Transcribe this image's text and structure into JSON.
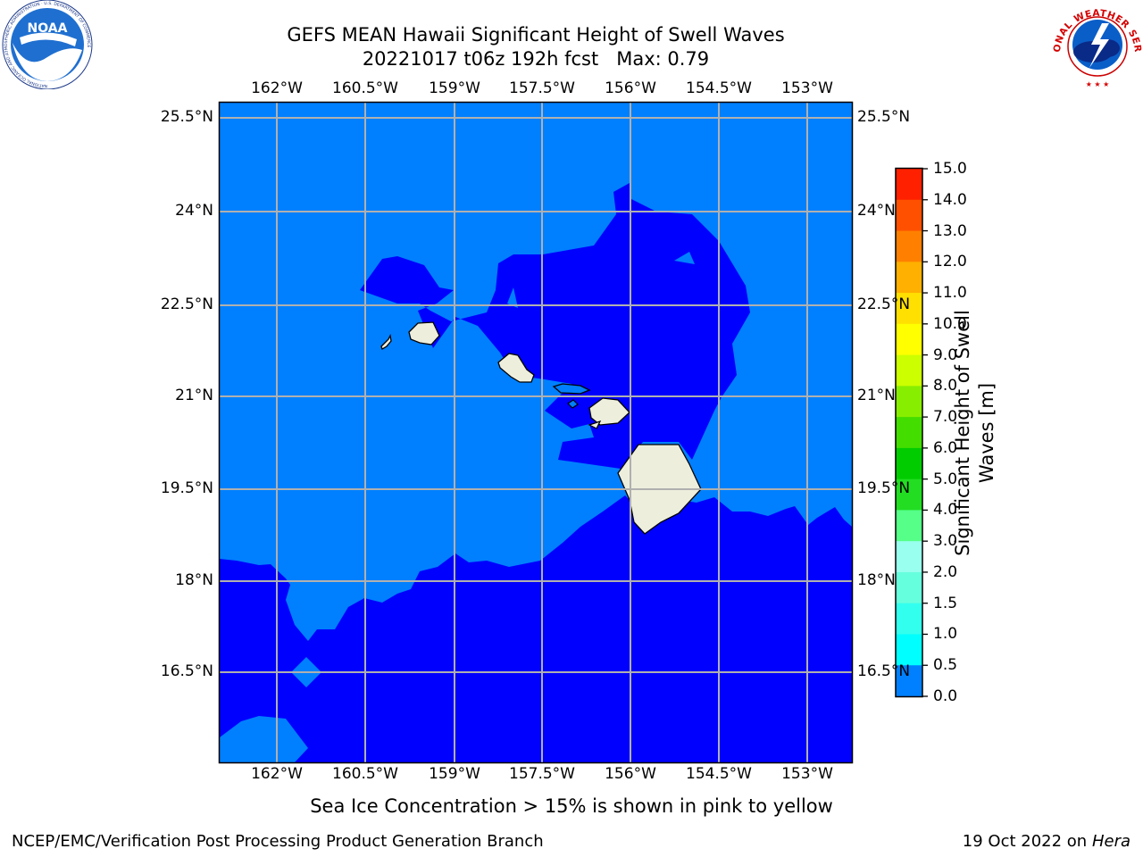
{
  "title": {
    "line1": "GEFS MEAN Hawaii Significant Height of Swell Waves",
    "line2": "20221017 t06z 192h fcst   Max: 0.79"
  },
  "axes": {
    "lon_labels": [
      "162°W",
      "160.5°W",
      "159°W",
      "157.5°W",
      "156°W",
      "154.5°W",
      "153°W"
    ],
    "lat_labels_left": [
      "25.5°N",
      "24°N",
      "22.5°N",
      "21°N",
      "19.5°N",
      "18°N",
      "16.5°N"
    ],
    "lat_labels_right": [
      "25.5°N",
      "24°N",
      "22.5°N",
      "21°N",
      "19.5°N",
      "18°N",
      "16.5°N"
    ]
  },
  "colorbar": {
    "label": "Significant Height of Swell Waves [m]",
    "label_line1": "Significant Height of Swell",
    "label_line2": "Waves [m]",
    "ticks": [
      "15.0",
      "14.0",
      "13.0",
      "12.0",
      "11.0",
      "10.0",
      "9.0",
      "8.0",
      "7.0",
      "6.0",
      "5.0",
      "4.0",
      "3.0",
      "2.0",
      "1.5",
      "1.0",
      "0.5",
      "0.0"
    ],
    "colors": [
      "#0000ff",
      "#0080ff",
      "#00ffff",
      "#33ffee",
      "#66ffdd",
      "#99ffee",
      "#55ff88",
      "#22dd22",
      "#00cc00",
      "#44dd00",
      "#88ee00",
      "#ccff00",
      "#ffff00",
      "#ffe000",
      "#ffb000",
      "#ff8000",
      "#ff5000",
      "#ff2000",
      "#ff0000"
    ]
  },
  "field": {
    "low_color": "#0000ff",
    "mid_color": "#0080ff",
    "land_color": "#eeeedd",
    "max_value": 0.79
  },
  "note": "Sea Ice Concentration > 15% is shown in pink to yellow",
  "footer": {
    "left": "NCEP/EMC/Verification Post Processing Product Generation Branch",
    "date": "19 Oct 2022 on ",
    "machine": "Hera"
  },
  "logos": {
    "noaa_text": "NOAA",
    "noaa_ring": "NATIONAL OCEANIC AND ATMOSPHERIC ADMINISTRATION · U.S. DEPARTMENT OF COMMERCE",
    "nws_ring": "NATIONAL WEATHER SERVICE"
  }
}
